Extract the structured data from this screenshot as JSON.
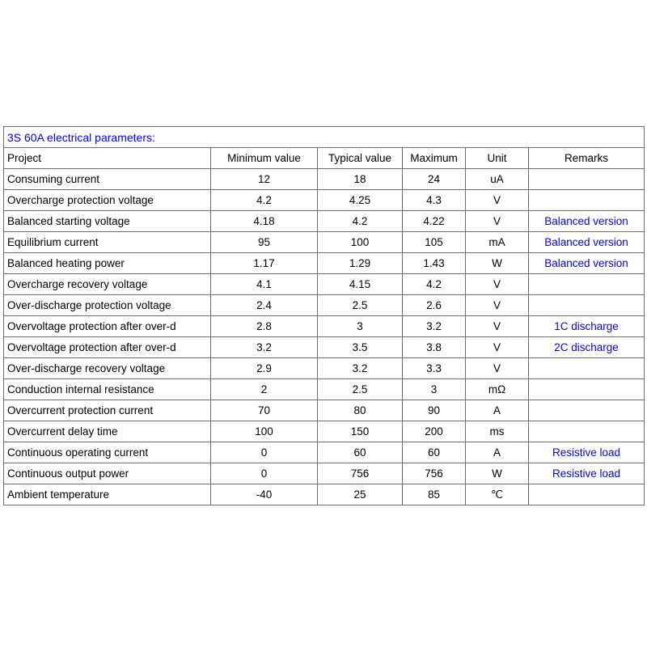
{
  "title": "3S 60A electrical parameters:",
  "colors": {
    "accent_blue": "#0000ff",
    "border": "#6e6e6e",
    "text": "#000000"
  },
  "table": {
    "headers": {
      "project": "Project",
      "min": "Minimum value",
      "typ": "Typical value",
      "max": "Maximum",
      "unit": "Unit",
      "remarks": "Remarks"
    },
    "rows": [
      {
        "project": "Consuming current",
        "min": "12",
        "typ": "18",
        "max": "24",
        "unit": "uA",
        "remarks": ""
      },
      {
        "project": "Overcharge protection voltage",
        "min": "4.2",
        "typ": "4.25",
        "max": "4.3",
        "unit": "V",
        "remarks": ""
      },
      {
        "project": "Balanced starting voltage",
        "min": "4.18",
        "typ": "4.2",
        "max": "4.22",
        "unit": "V",
        "remarks": "Balanced version"
      },
      {
        "project": "Equilibrium current",
        "min": "95",
        "typ": "100",
        "max": "105",
        "unit": "mA",
        "remarks": "Balanced version"
      },
      {
        "project": "Balanced heating power",
        "min": "1.17",
        "typ": "1.29",
        "max": "1.43",
        "unit": "W",
        "remarks": "Balanced version"
      },
      {
        "project": "Overcharge recovery voltage",
        "min": "4.1",
        "typ": "4.15",
        "max": "4.2",
        "unit": "V",
        "remarks": ""
      },
      {
        "project": "Over-discharge protection voltage",
        "min": "2.4",
        "typ": "2.5",
        "max": "2.6",
        "unit": "V",
        "remarks": ""
      },
      {
        "project": "Overvoltage protection after over-d",
        "min": "2.8",
        "typ": "3",
        "max": "3.2",
        "unit": "V",
        "remarks": "1C discharge"
      },
      {
        "project": "Overvoltage protection after over-d",
        "min": "3.2",
        "typ": "3.5",
        "max": "3.8",
        "unit": "V",
        "remarks": "2C discharge"
      },
      {
        "project": "Over-discharge recovery voltage",
        "min": "2.9",
        "typ": "3.2",
        "max": "3.3",
        "unit": "V",
        "remarks": ""
      },
      {
        "project": "Conduction internal resistance",
        "min": "2",
        "typ": "2.5",
        "max": "3",
        "unit": "mΩ",
        "remarks": ""
      },
      {
        "project": "Overcurrent protection current",
        "min": "70",
        "typ": "80",
        "max": "90",
        "unit": "A",
        "remarks": ""
      },
      {
        "project": "Overcurrent delay time",
        "min": "100",
        "typ": "150",
        "max": "200",
        "unit": "ms",
        "remarks": ""
      },
      {
        "project": "Continuous operating current",
        "min": "0",
        "typ": "60",
        "max": "60",
        "unit": "A",
        "remarks": "Resistive load"
      },
      {
        "project": "Continuous output power",
        "min": "0",
        "typ": "756",
        "max": "756",
        "unit": "W",
        "remarks": "Resistive load"
      },
      {
        "project": "Ambient temperature",
        "min": "-40",
        "typ": "25",
        "max": "85",
        "unit": "℃",
        "remarks": ""
      }
    ]
  }
}
